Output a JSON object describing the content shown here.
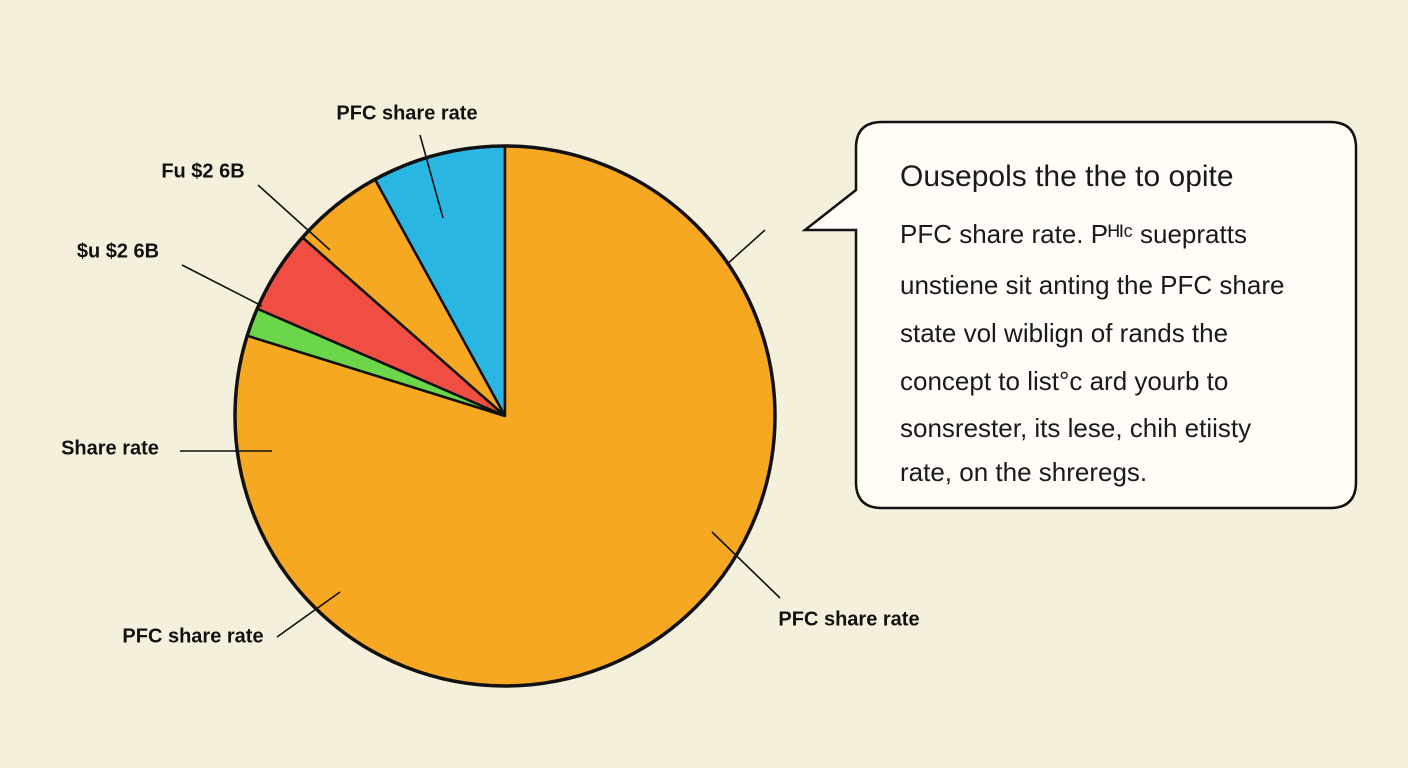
{
  "chart_data": {
    "type": "pie",
    "categories": [
      "PFC share rate",
      "Fu $2 6B",
      "$u $2 6B",
      null,
      "Share rate"
    ],
    "values": [
      8,
      5.5,
      5,
      1.7,
      79.8
    ],
    "colors": [
      "#29b6e3",
      "#f7a823",
      "#f04e43",
      "#6bd64a",
      "#f7a823"
    ],
    "start": "top",
    "direction": "counterclockwise",
    "annotations": [
      "PFC share rate",
      "PFC share rate"
    ]
  },
  "callout": {
    "title": "Ousepols the the to opite",
    "lines": [
      "PFC share rate. Pᴴᴵᶜ suepratts",
      "unstiene sit anting the PFC share",
      "state vol wiblign of rands the",
      "concept to list°c ard yourb to",
      "sonsrester, its lese, chih etiisty",
      "rate, on the shreregs."
    ]
  }
}
